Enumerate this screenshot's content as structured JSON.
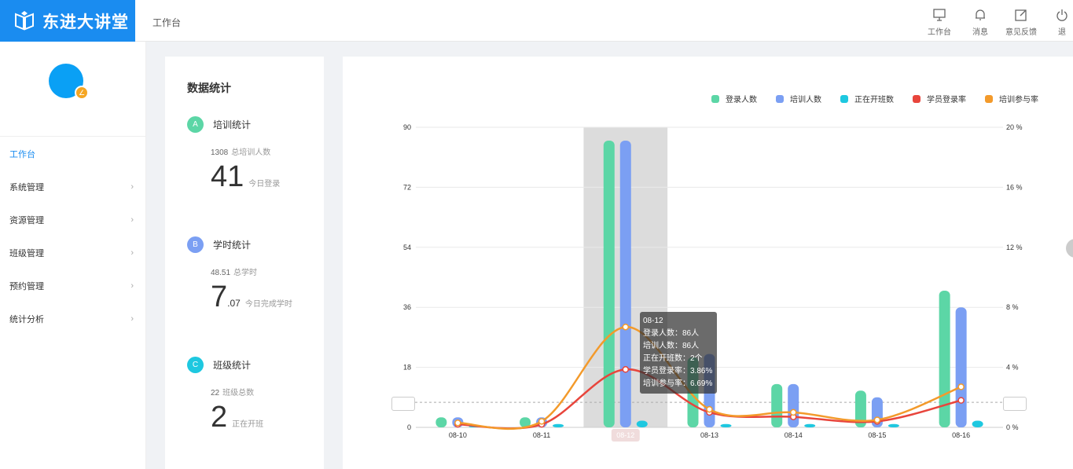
{
  "app": {
    "logo_text": "东进大讲堂"
  },
  "header": {
    "breadcrumb": "工作台",
    "tools": [
      {
        "label": "工作台",
        "icon": "monitor-icon"
      },
      {
        "label": "消息",
        "icon": "bell-icon"
      },
      {
        "label": "意见反馈",
        "icon": "edit-icon"
      },
      {
        "label": "退",
        "icon": "power-icon"
      }
    ]
  },
  "sidebar": {
    "menu": [
      {
        "label": "工作台",
        "active": true,
        "chevron": ""
      },
      {
        "label": "系统管理",
        "active": false,
        "chevron": "›"
      },
      {
        "label": "资源管理",
        "active": false,
        "chevron": "›"
      },
      {
        "label": "班级管理",
        "active": false,
        "chevron": "›"
      },
      {
        "label": "预约管理",
        "active": false,
        "chevron": "›"
      },
      {
        "label": "统计分析",
        "active": false,
        "chevron": "›"
      }
    ]
  },
  "stats": {
    "title": "数据统计",
    "training": {
      "badge": "A",
      "title": "培训统计",
      "sub_value": "1308",
      "sub_label": "总培训人数",
      "big": "41",
      "big_label": "今日登录"
    },
    "hours": {
      "badge": "B",
      "title": "学时统计",
      "sub_value": "48.51",
      "sub_label": "总学时",
      "big": "7",
      "big_dec": ".07",
      "big_label": "今日完成学时"
    },
    "classes": {
      "badge": "C",
      "title": "班级统计",
      "sub_value": "22",
      "sub_label": "班级总数",
      "big": "2",
      "big_label": "正在开班"
    }
  },
  "colors": {
    "brand": "#1a8cf0",
    "green": "#5cd6a6",
    "blue": "#7b9ff3",
    "cyan": "#1ec8e0",
    "red": "#e8453c",
    "orange": "#f39a2b"
  },
  "chart_data": {
    "type": "bar",
    "categories": [
      "08-10",
      "08-11",
      "08-12",
      "08-13",
      "08-14",
      "08-15",
      "08-16"
    ],
    "y_left": {
      "ticks": [
        "0",
        "18",
        "36",
        "54",
        "72",
        "90"
      ],
      "range": [
        0,
        90
      ]
    },
    "y_right": {
      "ticks": [
        "0 %",
        "4 %",
        "8 %",
        "12 %",
        "16 %",
        "20 %"
      ],
      "range": [
        0,
        20
      ]
    },
    "series": [
      {
        "name": "登录人数",
        "type": "bar",
        "axis": "left",
        "color": "#5cd6a6",
        "values": [
          3,
          3,
          86,
          21,
          13,
          11,
          41
        ]
      },
      {
        "name": "培训人数",
        "type": "bar",
        "axis": "left",
        "color": "#7b9ff3",
        "values": [
          3,
          3,
          86,
          22,
          13,
          9,
          36
        ]
      },
      {
        "name": "正在开班数",
        "type": "bar",
        "axis": "left",
        "color": "#1ec8e0",
        "values": [
          0.5,
          1,
          2,
          1,
          1,
          1,
          2
        ]
      },
      {
        "name": "学员登录率",
        "type": "line",
        "axis": "right",
        "color": "#e8453c",
        "values": [
          0.2,
          0.2,
          3.86,
          1.0,
          0.7,
          0.4,
          1.8
        ]
      },
      {
        "name": "培训参与率",
        "type": "line",
        "axis": "right",
        "color": "#f39a2b",
        "values": [
          0.3,
          0.4,
          6.69,
          1.2,
          1.0,
          0.5,
          2.7
        ]
      }
    ],
    "highlight_category": "08-12",
    "reference_value": 7.5,
    "tooltip": {
      "title": "08-12",
      "lines": [
        "登录人数：86人",
        "培训人数：86人",
        "正在开班数：2个",
        "学员登录率：3.86%",
        "培训参与率：6.69%"
      ]
    },
    "legend_position": "top-right"
  }
}
